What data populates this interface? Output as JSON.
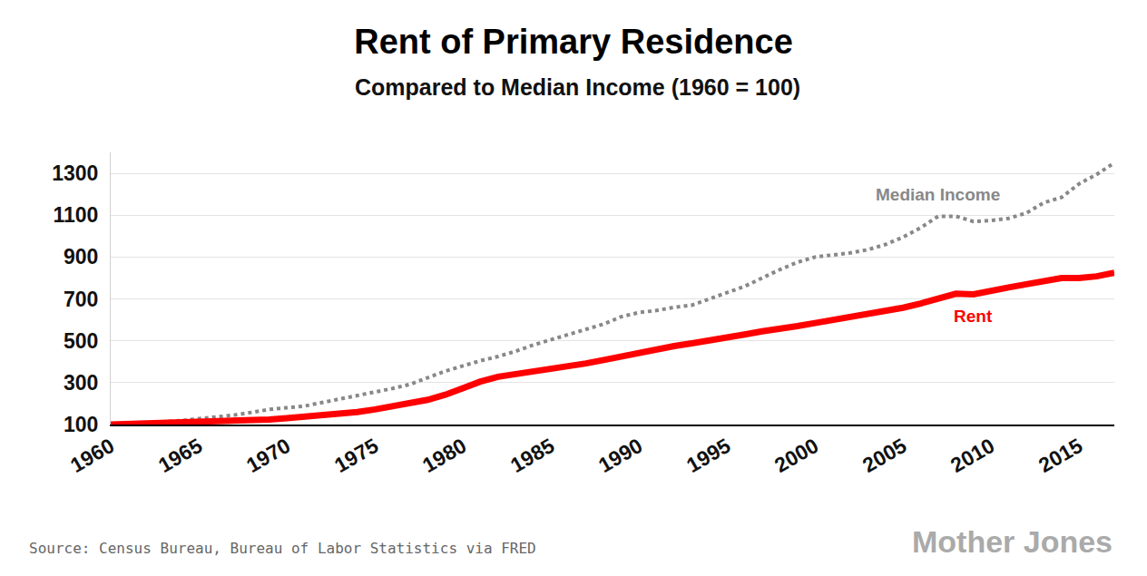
{
  "chart_data": {
    "type": "line",
    "title": "Rent of Primary Residence",
    "subtitle": "Compared to Median Income (1960 = 100)",
    "source": "Source: Census Bureau, Bureau of Labor Statistics via FRED",
    "credit": "Mother Jones",
    "x": [
      1960,
      1961,
      1962,
      1963,
      1964,
      1965,
      1966,
      1967,
      1968,
      1969,
      1970,
      1971,
      1972,
      1973,
      1974,
      1975,
      1976,
      1977,
      1978,
      1979,
      1980,
      1981,
      1982,
      1983,
      1984,
      1985,
      1986,
      1987,
      1988,
      1989,
      1990,
      1991,
      1992,
      1993,
      1994,
      1995,
      1996,
      1997,
      1998,
      1999,
      2000,
      2001,
      2002,
      2003,
      2004,
      2005,
      2006,
      2007,
      2008,
      2009,
      2010,
      2011,
      2012,
      2013,
      2014,
      2015,
      2016,
      2017
    ],
    "series": [
      {
        "name": "Median Income",
        "color": "#888888",
        "line_style": "dotted",
        "values": [
          100,
          103,
          108,
          113,
          119,
          127,
          137,
          145,
          158,
          172,
          180,
          188,
          205,
          222,
          237,
          252,
          272,
          292,
          322,
          355,
          380,
          405,
          425,
          450,
          480,
          505,
          530,
          555,
          580,
          615,
          635,
          645,
          660,
          670,
          700,
          730,
          760,
          800,
          840,
          875,
          900,
          910,
          920,
          935,
          960,
          995,
          1040,
          1095,
          1095,
          1070,
          1075,
          1085,
          1110,
          1160,
          1185,
          1250,
          1295,
          1350
        ]
      },
      {
        "name": "Rent",
        "color": "#ff0000",
        "line_style": "solid",
        "values": [
          100,
          102,
          104,
          106,
          108,
          110,
          112,
          115,
          119,
          124,
          130,
          137,
          143,
          150,
          160,
          172,
          185,
          200,
          218,
          242,
          275,
          305,
          328,
          340,
          352,
          365,
          378,
          392,
          408,
          425,
          445,
          462,
          475,
          488,
          500,
          515,
          530,
          545,
          555,
          570,
          585,
          600,
          612,
          625,
          640,
          658,
          678,
          700,
          725,
          722,
          735,
          755,
          770,
          785,
          800,
          800,
          808,
          825
        ]
      }
    ],
    "annotations": [
      {
        "text": "Median Income",
        "x": 2007,
        "y": 1200,
        "color": "#888888"
      },
      {
        "text": "Rent",
        "x": 2009,
        "y": 620,
        "color": "#ff0000"
      }
    ],
    "xlim": [
      1960,
      2017
    ],
    "xticks": [
      1960,
      1965,
      1970,
      1975,
      1980,
      1985,
      1990,
      1995,
      2000,
      2005,
      2010,
      2015
    ],
    "ylim": [
      100,
      1400
    ],
    "yticks": [
      100,
      300,
      500,
      700,
      900,
      1100,
      1300
    ],
    "grid": true
  }
}
